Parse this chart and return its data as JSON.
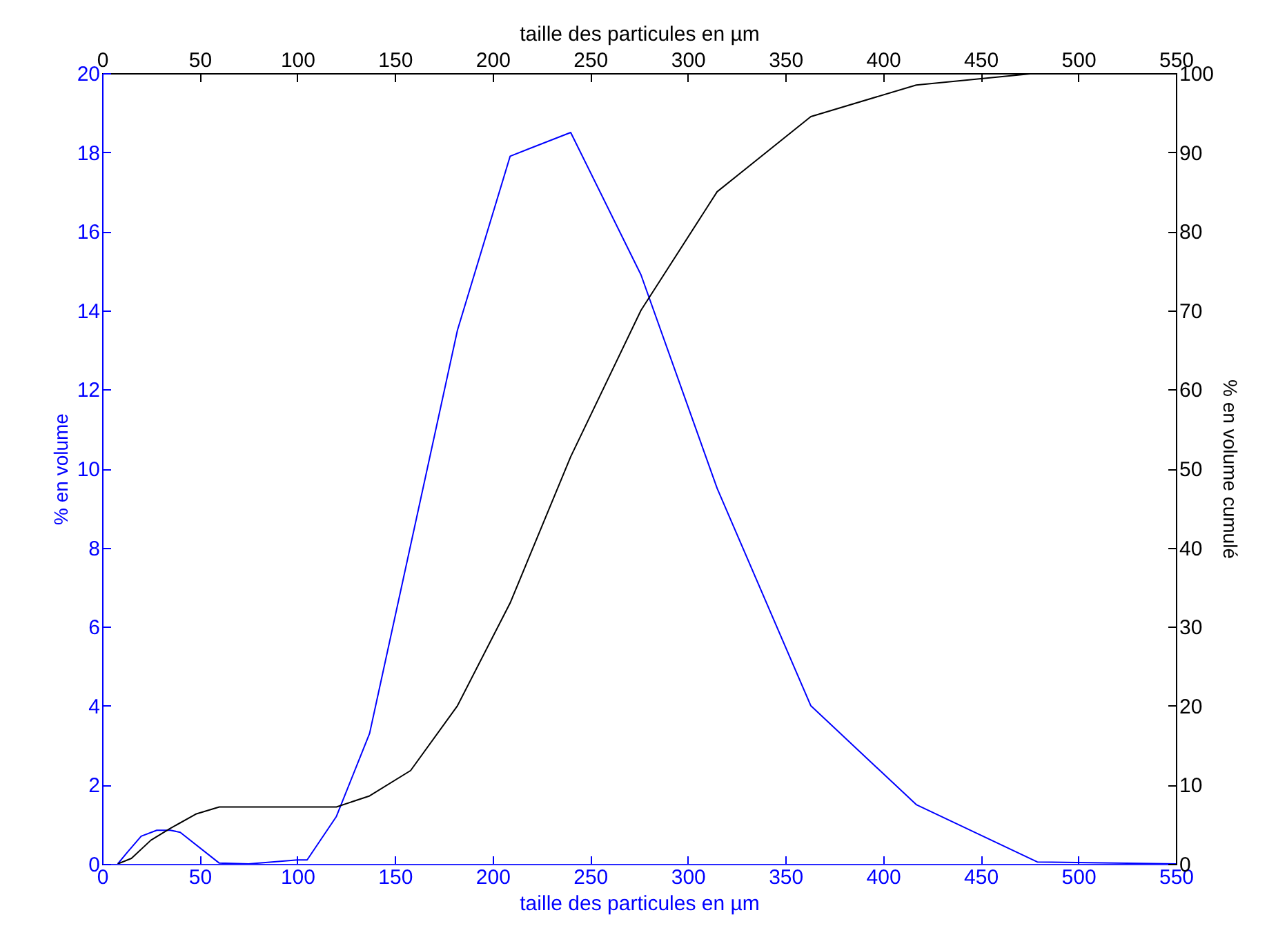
{
  "chart_data": {
    "type": "line",
    "xlabel": "taille des particules en µm",
    "ylabel": "% en volume",
    "y2label": "% en volume cumulé",
    "x2label": "taille des particules en µm",
    "xlim": [
      0,
      550
    ],
    "xticks": [
      0,
      50,
      100,
      150,
      200,
      250,
      300,
      350,
      400,
      450,
      500,
      550
    ],
    "x2lim": [
      0,
      550
    ],
    "x2ticks": [
      0,
      50,
      100,
      150,
      200,
      250,
      300,
      350,
      400,
      450,
      500,
      550
    ],
    "ylim": [
      0,
      20
    ],
    "yticks": [
      0,
      2,
      4,
      6,
      8,
      10,
      12,
      14,
      16,
      18,
      20
    ],
    "y2lim": [
      0,
      100
    ],
    "y2ticks": [
      0,
      10,
      20,
      30,
      40,
      50,
      60,
      70,
      80,
      90,
      100
    ],
    "series": [
      {
        "color": "#0000ff",
        "x": [
          8,
          13,
          20,
          28,
          35,
          40,
          60,
          75,
          100,
          105,
          120,
          137,
          182,
          209,
          240,
          276,
          315,
          363,
          417,
          479,
          550
        ],
        "values": [
          0,
          0.3,
          0.7,
          0.85,
          0.85,
          0.8,
          0.02,
          0,
          0.1,
          0.1,
          1.2,
          3.3,
          13.5,
          17.9,
          18.5,
          14.9,
          9.5,
          4.0,
          1.5,
          0.05,
          0
        ]
      },
      {
        "color": "#000000",
        "axis": "y2",
        "x": [
          8,
          15,
          25,
          35,
          48,
          60,
          100,
          120,
          137,
          158,
          182,
          209,
          240,
          276,
          315,
          363,
          417,
          479,
          550
        ],
        "values": [
          0,
          0.7,
          3,
          4.5,
          6.3,
          7.2,
          7.2,
          7.2,
          8.6,
          11.8,
          20,
          33,
          51.5,
          70,
          85,
          94.5,
          98.5,
          100,
          100
        ]
      }
    ]
  }
}
